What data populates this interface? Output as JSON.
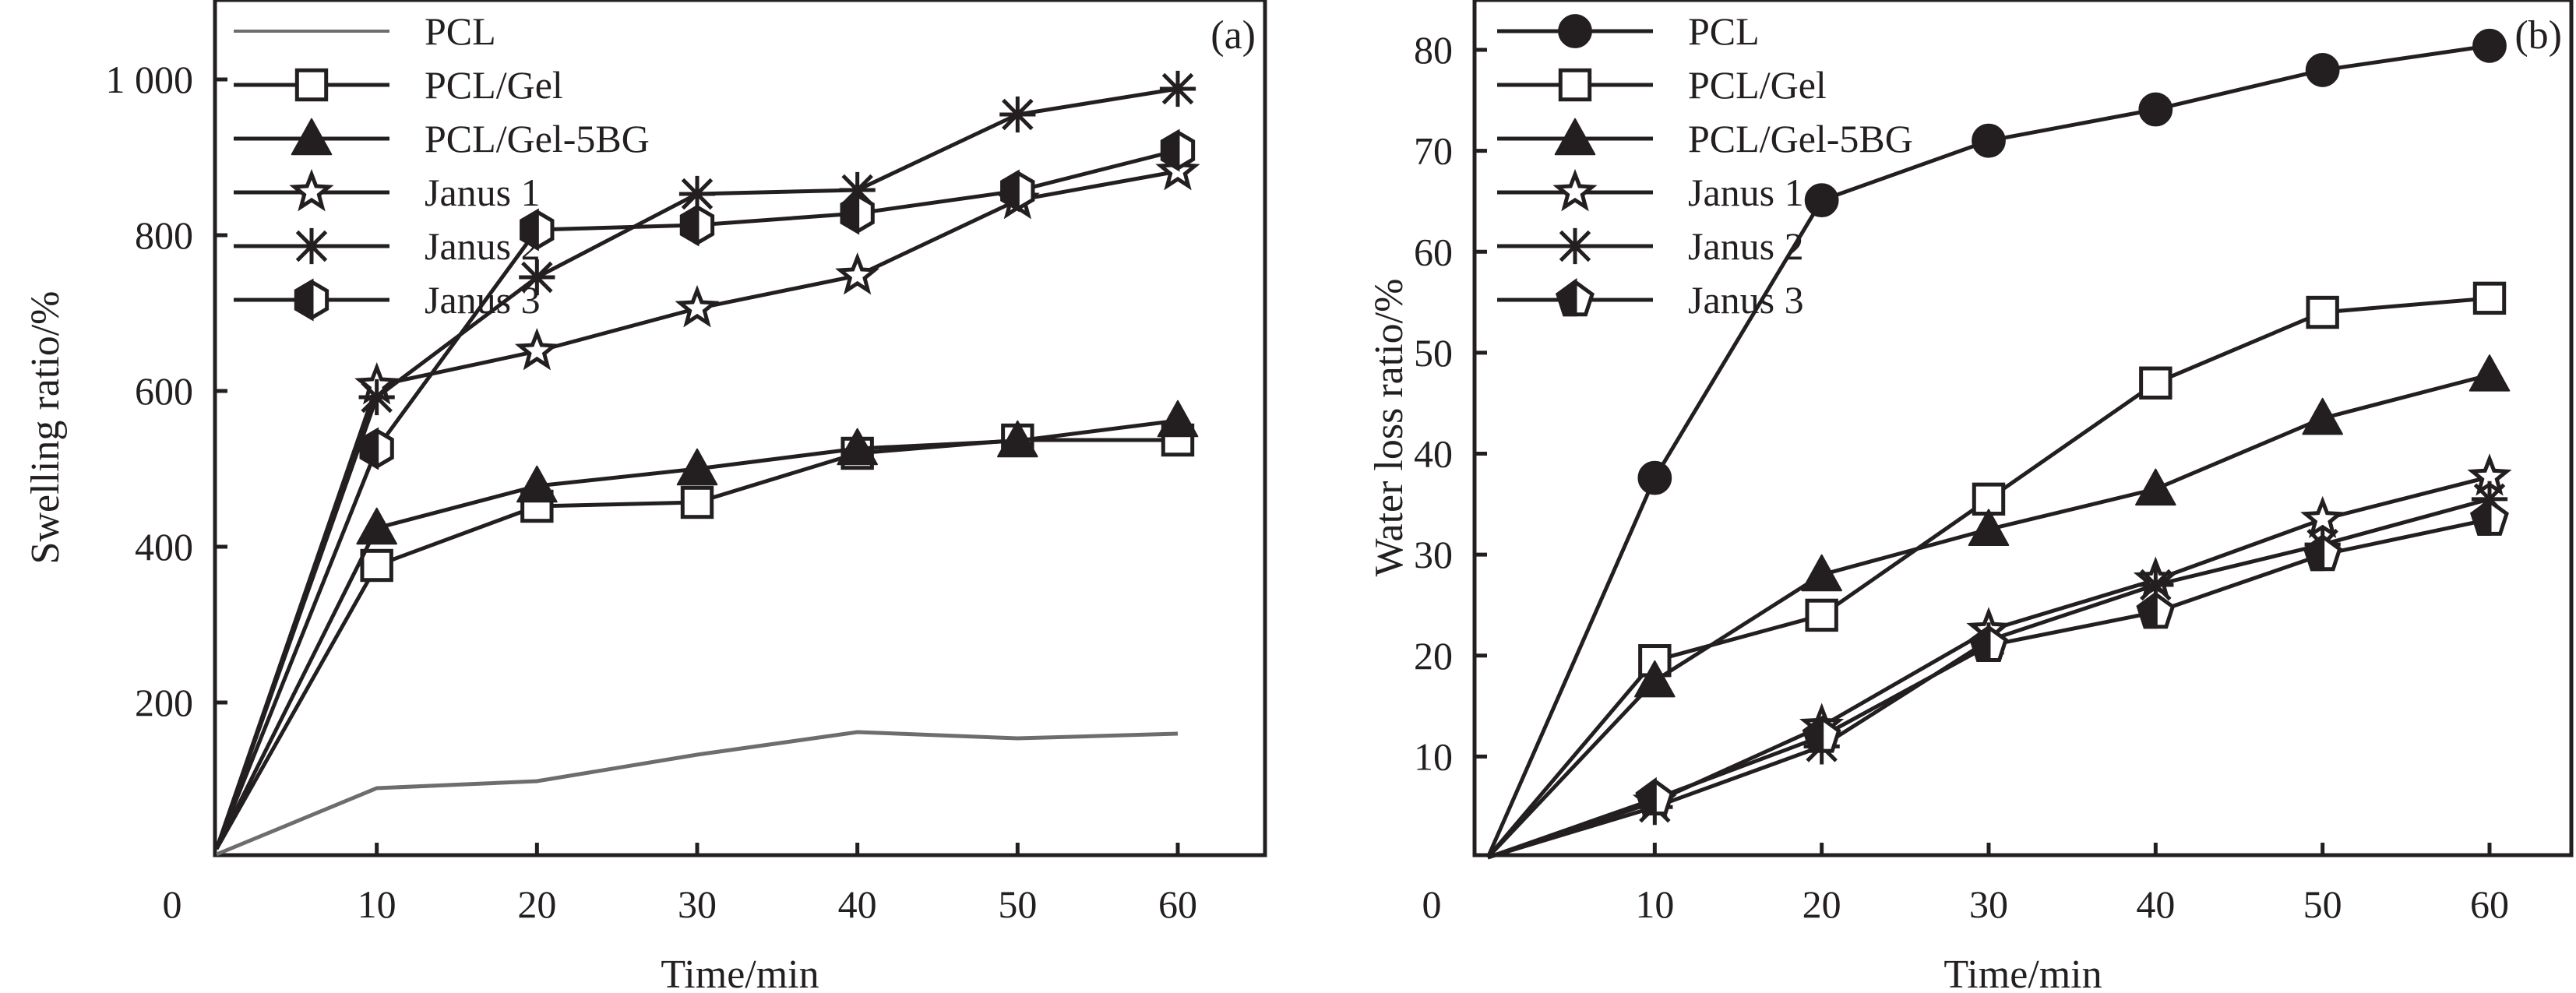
{
  "chart_data": [
    {
      "type": "line",
      "panel_label": "(a)",
      "title": "",
      "xlabel": "Time/min",
      "ylabel": "Swelling ratio/%",
      "xlim": [
        0,
        65
      ],
      "ylim": [
        0,
        1100
      ],
      "x_ticks": [
        10,
        20,
        30,
        40,
        50,
        60
      ],
      "x_tick_labels": [
        "10",
        "20",
        "30",
        "40",
        "50",
        "60"
      ],
      "y_ticks": [
        200,
        400,
        600,
        800,
        1000
      ],
      "y_tick_labels": [
        "200",
        "400",
        "600",
        "800",
        "1 000"
      ],
      "origin_label": "0",
      "grid": false,
      "legend_position": "top-left",
      "x": [
        0,
        10,
        20,
        30,
        40,
        50,
        60
      ],
      "series": [
        {
          "name": "PCL",
          "marker": "none",
          "color": "#6d6d6d",
          "values": [
            5,
            90,
            99,
            133,
            162,
            154,
            160
          ]
        },
        {
          "name": "PCL/Gel",
          "marker": "square-open",
          "color": "#231f20",
          "values": [
            12,
            376,
            452,
            457,
            520,
            537,
            537
          ]
        },
        {
          "name": "PCL/Gel-5BG",
          "marker": "triangle-filled",
          "color": "#231f20",
          "values": [
            12,
            424,
            478,
            500,
            526,
            536,
            562
          ]
        },
        {
          "name": "Janus 1",
          "marker": "star-open",
          "color": "#231f20",
          "values": [
            12,
            607,
            651,
            706,
            748,
            845,
            882
          ]
        },
        {
          "name": "Janus 2",
          "marker": "asterisk",
          "color": "#231f20",
          "values": [
            12,
            592,
            746,
            853,
            858,
            955,
            988
          ]
        },
        {
          "name": "Janus 3",
          "marker": "hexagon-half",
          "color": "#231f20",
          "values": [
            12,
            526,
            807,
            813,
            828,
            857,
            909
          ]
        }
      ]
    },
    {
      "type": "line",
      "panel_label": "(b)",
      "title": "",
      "xlabel": "Time/min",
      "ylabel": "Water loss ratio/%",
      "xlim": [
        0,
        65
      ],
      "ylim": [
        0,
        85
      ],
      "x_ticks": [
        10,
        20,
        30,
        40,
        50,
        60
      ],
      "x_tick_labels": [
        "10",
        "20",
        "30",
        "40",
        "50",
        "60"
      ],
      "y_ticks": [
        10,
        20,
        30,
        40,
        50,
        60,
        70,
        80
      ],
      "y_tick_labels": [
        "10",
        "20",
        "30",
        "40",
        "50",
        "60",
        "70",
        "80"
      ],
      "origin_label": "0",
      "grid": false,
      "legend_position": "top-left",
      "x": [
        0,
        10,
        20,
        30,
        40,
        50,
        60
      ],
      "series": [
        {
          "name": "PCL",
          "marker": "circle-filled",
          "color": "#231f20",
          "values": [
            0,
            37.6,
            65.1,
            71.0,
            74.1,
            78.0,
            80.4
          ]
        },
        {
          "name": "PCL/Gel",
          "marker": "square-open",
          "color": "#231f20",
          "values": [
            0,
            19.5,
            24.0,
            35.5,
            47.0,
            54.0,
            55.4
          ]
        },
        {
          "name": "PCL/Gel-5BG",
          "marker": "triangle-filled",
          "color": "#231f20",
          "values": [
            0,
            17.5,
            28.0,
            32.5,
            36.5,
            43.5,
            47.8
          ]
        },
        {
          "name": "Janus 1",
          "marker": "star-open",
          "color": "#231f20",
          "values": [
            0,
            5.5,
            13.0,
            22.5,
            27.5,
            33.5,
            37.7
          ]
        },
        {
          "name": "Janus 2",
          "marker": "asterisk",
          "color": "#231f20",
          "values": [
            0,
            5.0,
            11.0,
            21.5,
            27.0,
            31.0,
            35.5
          ]
        },
        {
          "name": "Janus 3",
          "marker": "pentagon-half",
          "color": "#231f20",
          "values": [
            0,
            5.8,
            12.0,
            21.0,
            24.3,
            30.0,
            33.5
          ]
        }
      ]
    }
  ]
}
